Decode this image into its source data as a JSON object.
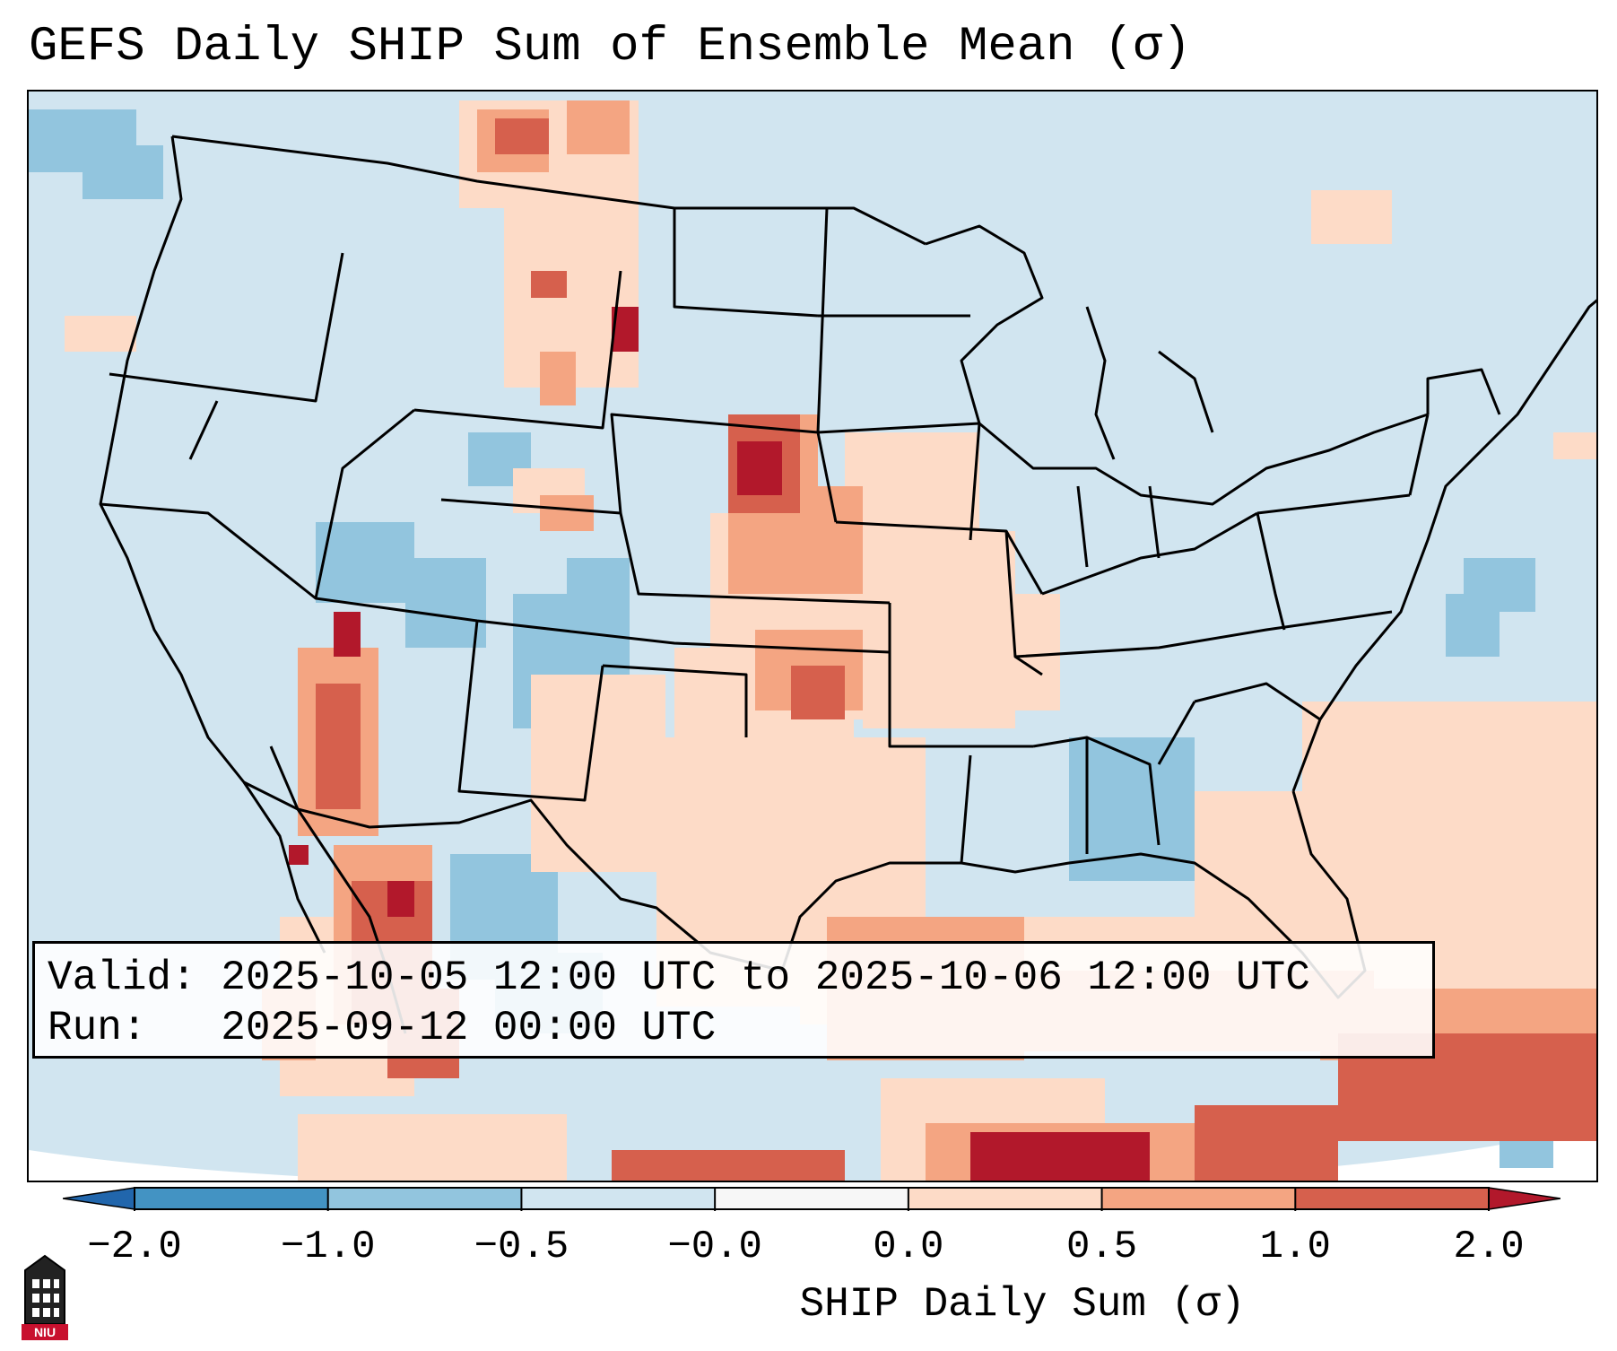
{
  "title": "GEFS Daily SHIP Sum of Ensemble Mean (σ)",
  "info": {
    "valid_label": "Valid:",
    "valid_value": "2025-10-05 12:00 UTC to 2025-10-06 12:00 UTC",
    "run_label": "Run:",
    "run_value": "2025-09-12 00:00 UTC"
  },
  "colorbar": {
    "label": "SHIP Daily Sum (σ)",
    "ticks": [
      "−2.0",
      "−1.0",
      "−0.5",
      "−0.0",
      "0.0",
      "0.5",
      "1.0",
      "2.0"
    ],
    "colors": [
      "#4393c3",
      "#92c5de",
      "#d1e5f0",
      "#f7f7f7",
      "#fddbc7",
      "#f4a582",
      "#d6604d"
    ],
    "extend_low_color": "#2166ac",
    "extend_high_color": "#b2182b"
  },
  "logo": {
    "text": "NIU"
  },
  "map": {
    "region": "Contiguous United States",
    "background_color": "#d1e5f0"
  }
}
